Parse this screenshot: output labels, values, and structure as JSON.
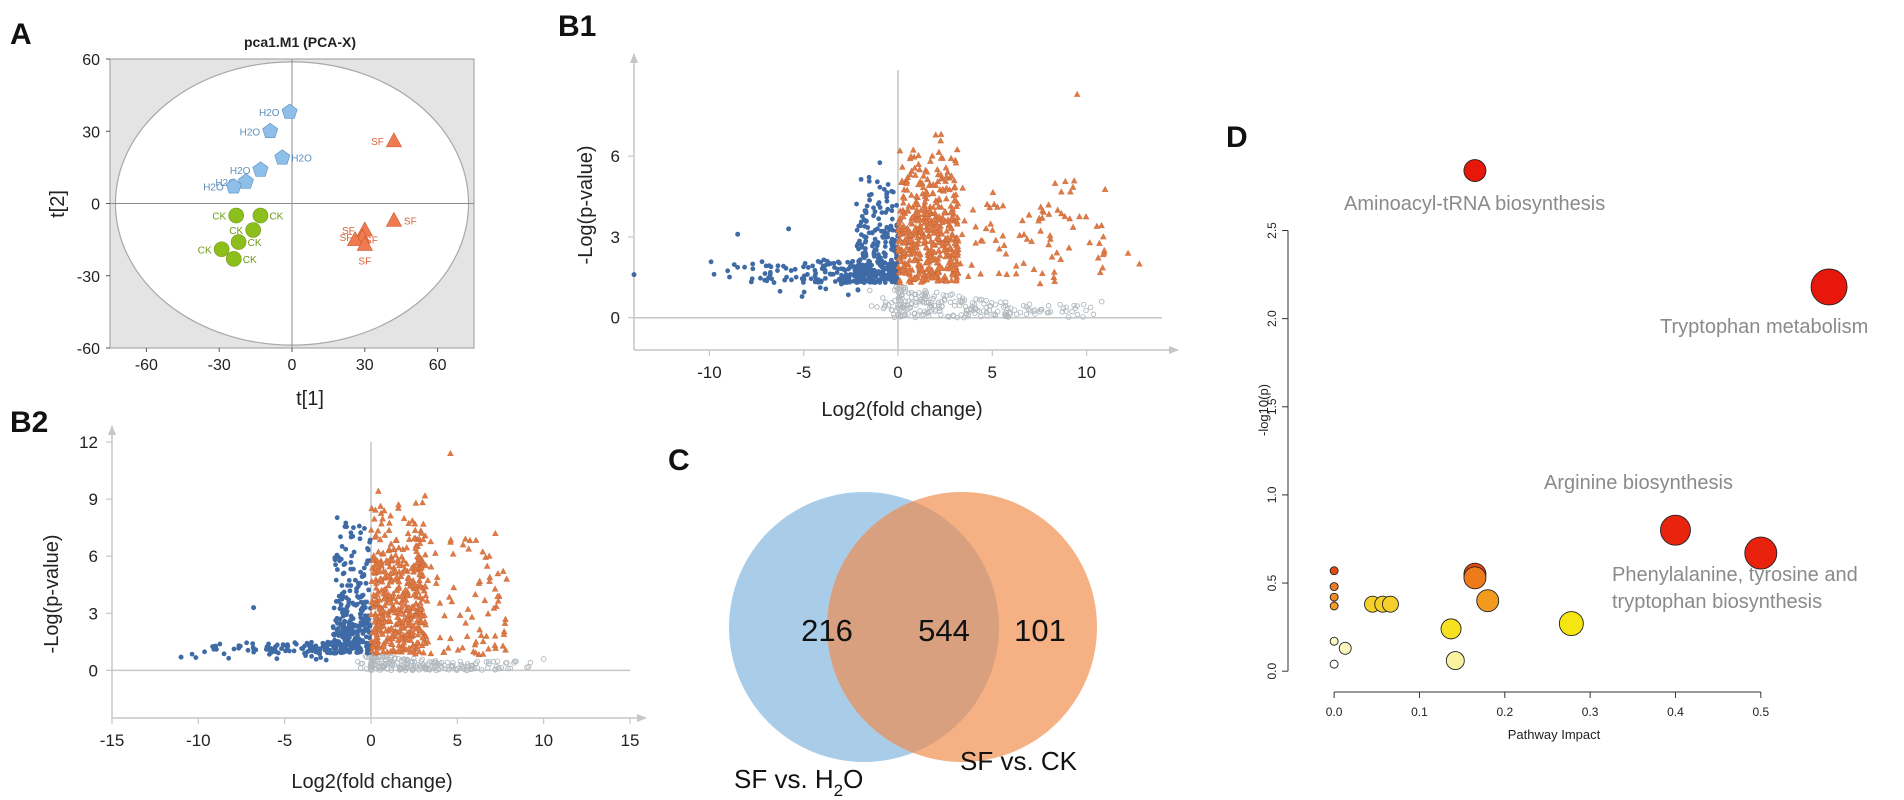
{
  "panel_labels": {
    "a": "A",
    "b1": "B1",
    "b2": "B2",
    "c": "C",
    "d": "D"
  },
  "colors": {
    "h2o": "#8ebfe8",
    "sf": "#f07b50",
    "ck": "#8cbf1c",
    "up": "#e07a45",
    "down": "#3e6aa6",
    "ns": "#b0b8be",
    "venn_left": "#a9cde8",
    "venn_right": "#f5b184",
    "venn_overlap": "#d9a07f",
    "pca_bg": "#e4e4e4"
  },
  "chart_data": [
    {
      "id": "pca",
      "type": "scatter",
      "title": "pca1.M1 (PCA-X)",
      "xlabel": "t[1]",
      "ylabel": "t[2]",
      "xlim": [
        -75,
        75
      ],
      "ylim": [
        -60,
        60
      ],
      "xticks": [
        "-60",
        "-30",
        "0",
        "30",
        "60"
      ],
      "yticks": [
        "60",
        "30",
        "0",
        "-30",
        "-60"
      ],
      "series": [
        {
          "name": "H2O",
          "marker": "pentagon",
          "points": [
            {
              "x": -1,
              "y": 38,
              "label": "H2O"
            },
            {
              "x": -9,
              "y": 30,
              "label": "H2O"
            },
            {
              "x": -4,
              "y": 19,
              "label": "H2O"
            },
            {
              "x": -13,
              "y": 14,
              "label": "H2O"
            },
            {
              "x": -19,
              "y": 9,
              "label": "H2O"
            },
            {
              "x": -24,
              "y": 7,
              "label": "H2O"
            }
          ]
        },
        {
          "name": "SF",
          "marker": "triangle",
          "points": [
            {
              "x": 42,
              "y": 26,
              "label": "SF"
            },
            {
              "x": 42,
              "y": -7,
              "label": "SF"
            },
            {
              "x": 30,
              "y": -11,
              "label": "SF"
            },
            {
              "x": 29,
              "y": -14,
              "label": "SF"
            },
            {
              "x": 26,
              "y": -15,
              "label": "SF"
            },
            {
              "x": 30,
              "y": -17,
              "label": "SF"
            }
          ]
        },
        {
          "name": "CK",
          "marker": "circle",
          "points": [
            {
              "x": -23,
              "y": -5,
              "label": "CK"
            },
            {
              "x": -13,
              "y": -5,
              "label": "CK"
            },
            {
              "x": -16,
              "y": -11,
              "label": "CK"
            },
            {
              "x": -22,
              "y": -16,
              "label": "CK"
            },
            {
              "x": -29,
              "y": -19,
              "label": "CK"
            },
            {
              "x": -24,
              "y": -23,
              "label": "CK"
            }
          ]
        }
      ]
    },
    {
      "id": "b1",
      "type": "scatter",
      "title": "",
      "xlabel": "Log2(fold change)",
      "ylabel": "-Log(p-value)",
      "xlim": [
        -14,
        14
      ],
      "ylim": [
        -1.2,
        9.2
      ],
      "xticks": [
        -10,
        -5,
        0,
        5,
        10
      ],
      "yticks": [
        0,
        3,
        6
      ],
      "groups": {
        "up": 560,
        "down": 420,
        "ns": 230
      },
      "extreme_points": [
        {
          "x": 9.5,
          "y": 8.3,
          "group": "up"
        },
        {
          "x": 12.2,
          "y": 2.4,
          "group": "up"
        },
        {
          "x": 12.8,
          "y": 2.0,
          "group": "up"
        },
        {
          "x": -14,
          "y": 1.6,
          "group": "down"
        },
        {
          "x": -8.5,
          "y": 3.1,
          "group": "down"
        },
        {
          "x": -5.8,
          "y": 3.3,
          "group": "down"
        },
        {
          "x": 10.8,
          "y": 0.6,
          "group": "ns"
        }
      ]
    },
    {
      "id": "b2",
      "type": "scatter",
      "title": "",
      "xlabel": "Log2(fold change)",
      "ylabel": "-Log(p-value)",
      "xlim": [
        -15,
        15
      ],
      "ylim": [
        -2.5,
        12
      ],
      "xticks": [
        -15,
        -10,
        -5,
        0,
        5,
        10,
        15
      ],
      "yticks": [
        0,
        3,
        6,
        9,
        12
      ],
      "groups": {
        "up": 520,
        "down": 400,
        "ns": 200
      },
      "extreme_points": [
        {
          "x": 4.6,
          "y": 11.4,
          "group": "up"
        },
        {
          "x": 7.2,
          "y": 7.2,
          "group": "up"
        },
        {
          "x": -11,
          "y": 0.7,
          "group": "down"
        },
        {
          "x": -6.8,
          "y": 3.3,
          "group": "down"
        },
        {
          "x": 10,
          "y": 0.6,
          "group": "ns"
        }
      ]
    },
    {
      "id": "venn",
      "type": "venn",
      "sets": [
        {
          "name": "SF vs. H",
          "sub": "2",
          "suffix": "O",
          "only": 216
        },
        {
          "name": "SF vs. CK",
          "only": 101
        }
      ],
      "overlap": 544
    },
    {
      "id": "pathway",
      "type": "scatter",
      "title": "",
      "xlabel": "Pathway Impact",
      "ylabel": "-log10(p)",
      "xlim": [
        -0.04,
        0.56
      ],
      "ylim": [
        -0.05,
        2.9
      ],
      "xticks": [
        "0.0",
        "0.1",
        "0.2",
        "0.3",
        "0.4",
        "0.5"
      ],
      "yticks": [
        "0.0",
        "0.5",
        "1.0",
        "1.5",
        "2.0",
        "2.5"
      ],
      "points": [
        {
          "x": 0.165,
          "y": 2.84,
          "size": 11,
          "color": "#e8170c",
          "label": "Aminoacyl-tRNA biosynthesis"
        },
        {
          "x": 0.58,
          "y": 2.18,
          "size": 18,
          "color": "#e8170c",
          "label": "Tryptophan metabolism"
        },
        {
          "x": 0.4,
          "y": 0.8,
          "size": 15,
          "color": "#e8240e",
          "label": "Arginine biosynthesis"
        },
        {
          "x": 0.5,
          "y": 0.67,
          "size": 16,
          "color": "#e8220d",
          "label": "Phenylalanine, tyrosine and tryptophan biosynthesis"
        },
        {
          "x": 0.165,
          "y": 0.55,
          "size": 11,
          "color": "#e6450f",
          "label": ""
        },
        {
          "x": 0.165,
          "y": 0.53,
          "size": 11,
          "color": "#ef7a1a",
          "label": ""
        },
        {
          "x": 0.18,
          "y": 0.4,
          "size": 11,
          "color": "#f29a1f",
          "label": ""
        },
        {
          "x": 0.278,
          "y": 0.27,
          "size": 12,
          "color": "#f5e612",
          "label": ""
        },
        {
          "x": 0.137,
          "y": 0.24,
          "size": 10,
          "color": "#f7df22",
          "label": ""
        },
        {
          "x": 0.142,
          "y": 0.06,
          "size": 9,
          "color": "#f9f1a2",
          "label": ""
        },
        {
          "x": 0.045,
          "y": 0.38,
          "size": 8,
          "color": "#f5cf2a",
          "label": ""
        },
        {
          "x": 0.057,
          "y": 0.38,
          "size": 8,
          "color": "#f5cf2a",
          "label": ""
        },
        {
          "x": 0.066,
          "y": 0.38,
          "size": 8,
          "color": "#f5cf2a",
          "label": ""
        },
        {
          "x": 0.0,
          "y": 0.57,
          "size": 4,
          "color": "#e54a12",
          "label": ""
        },
        {
          "x": 0.0,
          "y": 0.48,
          "size": 4,
          "color": "#ee7d22",
          "label": ""
        },
        {
          "x": 0.0,
          "y": 0.42,
          "size": 4,
          "color": "#ef8a24",
          "label": ""
        },
        {
          "x": 0.0,
          "y": 0.37,
          "size": 4,
          "color": "#f19a26",
          "label": ""
        },
        {
          "x": 0.0,
          "y": 0.17,
          "size": 4,
          "color": "#fbf5bf",
          "label": ""
        },
        {
          "x": 0.013,
          "y": 0.13,
          "size": 6,
          "color": "#fbf5bf",
          "label": ""
        },
        {
          "x": 0.0,
          "y": 0.04,
          "size": 4,
          "color": "#ffffff",
          "label": ""
        }
      ]
    }
  ]
}
